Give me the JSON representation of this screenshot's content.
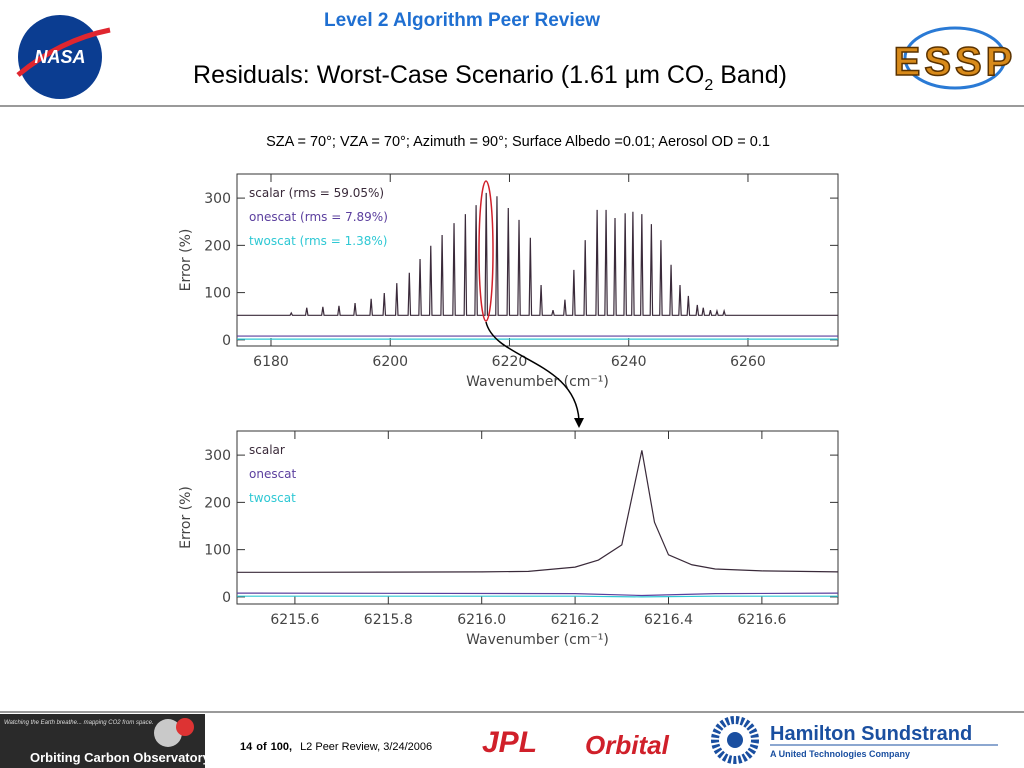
{
  "header": {
    "program": "Level 2 Algorithm Peer Review",
    "title": [
      "Residuals: Worst-Case Scenario (1.61 µm CO",
      "2",
      " Band)"
    ],
    "subtitle": "SZA = 70°; VZA = 70°; Azimuth = 90°; Surface Albedo =0.01; Aerosol OD = 0.1",
    "logo_left": "NASA",
    "logo_right": "ESSP"
  },
  "chart_data": [
    {
      "type": "line",
      "xlabel": "Wavenumber (cm⁻¹)",
      "ylabel": "Error (%)",
      "xlim": [
        6174.3,
        6275.1
      ],
      "ylim": [
        -13,
        351
      ],
      "xticks": [
        6180,
        6200,
        6220,
        6240,
        6260
      ],
      "yticks": [
        0,
        100,
        200,
        300
      ],
      "series": [
        {
          "name": "scalar (rms = 59.05%)",
          "color": "#3a2a3a",
          "x": [
            6174.3,
            6183.2,
            6183.4,
            6183.6,
            6185.8,
            6186.0,
            6186.2,
            6188.5,
            6188.7,
            6188.9,
            6191.2,
            6191.4,
            6191.6,
            6193.9,
            6194.1,
            6194.3,
            6196.6,
            6196.8,
            6197.0,
            6198.8,
            6199.0,
            6199.2,
            6200.9,
            6201.1,
            6201.3,
            6203.0,
            6203.2,
            6203.4,
            6204.8,
            6205.0,
            6205.2,
            6206.6,
            6206.8,
            6207.0,
            6208.5,
            6208.7,
            6208.9,
            6210.5,
            6210.7,
            6210.9,
            6212.4,
            6212.6,
            6212.8,
            6214.2,
            6214.4,
            6214.6,
            6215.9,
            6216.1,
            6216.3,
            6217.7,
            6217.9,
            6218.1,
            6219.6,
            6219.8,
            6220.0,
            6221.4,
            6221.6,
            6221.8,
            6223.3,
            6223.5,
            6223.7,
            6225.1,
            6225.3,
            6225.5,
            6227.1,
            6227.3,
            6227.5,
            6229.1,
            6229.3,
            6229.5,
            6230.6,
            6230.8,
            6231.0,
            6232.5,
            6232.7,
            6232.9,
            6234.5,
            6234.7,
            6234.9,
            6236.0,
            6236.2,
            6236.4,
            6237.5,
            6237.7,
            6237.9,
            6239.2,
            6239.4,
            6239.6,
            6240.5,
            6240.7,
            6240.9,
            6242.0,
            6242.2,
            6242.4,
            6243.6,
            6243.8,
            6244.0,
            6245.2,
            6245.4,
            6245.6,
            6246.9,
            6247.1,
            6247.3,
            6248.4,
            6248.6,
            6248.8,
            6249.8,
            6250.0,
            6250.2,
            6251.3,
            6251.5,
            6251.7,
            6252.3,
            6252.5,
            6252.7,
            6253.5,
            6253.7,
            6253.9,
            6254.6,
            6254.8,
            6255.0,
            6255.8,
            6256.0,
            6256.2,
            6275.1
          ],
          "values": [
            52,
            52,
            57,
            52,
            52,
            68,
            52,
            52,
            70,
            52,
            52,
            72,
            52,
            52,
            78,
            52,
            52,
            87,
            52,
            52,
            99,
            52,
            52,
            120,
            52,
            52,
            142,
            52,
            52,
            171,
            52,
            52,
            199,
            52,
            52,
            222,
            52,
            52,
            247,
            52,
            52,
            266,
            52,
            52,
            285,
            52,
            52,
            311,
            52,
            52,
            304,
            52,
            52,
            279,
            52,
            52,
            254,
            52,
            52,
            216,
            52,
            52,
            116,
            52,
            52,
            63,
            52,
            52,
            85,
            52,
            52,
            148,
            52,
            52,
            211,
            52,
            52,
            275,
            52,
            52,
            275,
            52,
            52,
            258,
            52,
            52,
            268,
            52,
            52,
            271,
            52,
            52,
            266,
            52,
            52,
            245,
            52,
            52,
            211,
            52,
            52,
            159,
            52,
            52,
            116,
            52,
            52,
            93,
            52,
            52,
            74,
            52,
            52,
            68,
            52,
            52,
            63,
            52,
            52,
            61,
            52,
            52,
            61,
            52,
            52
          ]
        },
        {
          "name": "onescat (rms = 7.89%)",
          "color": "#5b3f9e",
          "x": [
            6174.3,
            6275.1
          ],
          "values": [
            8,
            8
          ]
        },
        {
          "name": "twoscat (rms = 1.38%)",
          "color": "#2ec8d4",
          "x": [
            6174.3,
            6275.1
          ],
          "values": [
            1.5,
            1.5
          ]
        }
      ]
    },
    {
      "type": "line",
      "xlabel": "Wavenumber (cm⁻¹)",
      "ylabel": "Error (%)",
      "xlim": [
        6215.476,
        6216.763
      ],
      "ylim": [
        -15,
        351
      ],
      "xticks": [
        6215.6,
        6215.8,
        {
          "value": 6216,
          "label": "6216.0"
        },
        6216.2,
        6216.4,
        6216.6
      ],
      "yticks": [
        0,
        100,
        200,
        300
      ],
      "series": [
        {
          "name": "scalar",
          "color": "#3a2a3a",
          "x": [
            6215.476,
            6215.6,
            6215.8,
            6216.0,
            6216.1,
            6216.2,
            6216.25,
            6216.3,
            6216.343,
            6216.37,
            6216.4,
            6216.45,
            6216.5,
            6216.6,
            6216.763
          ],
          "values": [
            52,
            52,
            52.5,
            53,
            54,
            63,
            78,
            110,
            310,
            158,
            89,
            68,
            59,
            55,
            53
          ]
        },
        {
          "name": "onescat",
          "color": "#5b3f9e",
          "x": [
            6215.476,
            6216.2,
            6216.343,
            6216.5,
            6216.763
          ],
          "values": [
            8,
            7,
            3,
            7,
            8
          ]
        },
        {
          "name": "twoscat",
          "color": "#2ec8d4",
          "x": [
            6215.476,
            6216.2,
            6216.343,
            6216.5,
            6216.763
          ],
          "values": [
            1.5,
            1.5,
            0,
            1.5,
            1.5
          ]
        }
      ]
    }
  ],
  "footer": {
    "page": "14",
    "of": "of",
    "total": "100,",
    "note": "L2 Peer Review, 3/24/2006",
    "oco_tagline": "Watching the Earth breathe... mapping CO2 from space.",
    "oco_name": "Orbiting Carbon Observatory",
    "partners": [
      "JPL",
      "Orbital",
      "Hamilton Sundstrand",
      "A United Technologies Company"
    ]
  }
}
